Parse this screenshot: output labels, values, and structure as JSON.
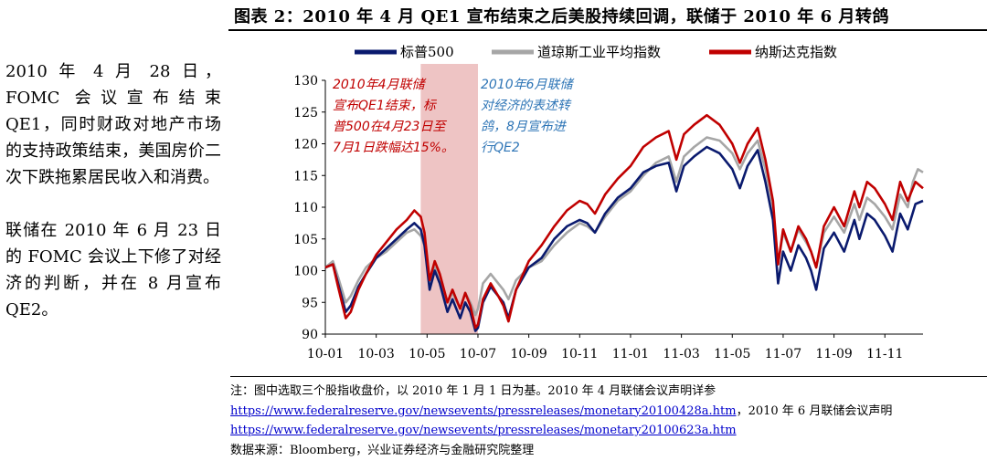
{
  "title": "图表 2：2010 年 4 月 QE1 宣布结束之后美股持续回调，联储于 2010 年 6 月转鸽",
  "sidebar": {
    "paragraph_1": "2010 年 4 月 28 日，FOMC 会议宣布结束 QE1，同时财政对地产市场的支持政策结束，美国房价二次下跌拖累居民收入和消费。",
    "paragraph_2": "联储在 2010 年 6 月 23 日的 FOMC 会议上下修了对经济的判断，并在 8 月宣布 QE2。"
  },
  "notes": {
    "note_line": "注：图中选取三个股指收盘价，以 2010 年 1 月 1 日为基。2010 年 4 月联储会议声明详参",
    "link_1": "https://www.federalreserve.gov/newsevents/pressreleases/monetary20100428a.htm",
    "link_1_suffix": "，2010 年 6 月联储会议声明",
    "link_2": "https://www.federalreserve.gov/newsevents/pressreleases/monetary20100623a.htm",
    "source": "数据来源：Bloomberg，兴业证券经济与金融研究院整理"
  },
  "colors": {
    "sp500": "#0a1a6e",
    "dow": "#a6a6a6",
    "nasdaq": "#c00000",
    "shade": "#eec4c4",
    "anno_red": "#c00000",
    "anno_blue": "#2e75b6"
  },
  "chart_data": {
    "type": "line",
    "title": "",
    "xlabel": "",
    "ylabel": "",
    "x_ticks": [
      "10-01",
      "10-03",
      "10-05",
      "10-07",
      "10-09",
      "10-11",
      "11-01",
      "11-03",
      "11-05",
      "11-07",
      "11-09",
      "11-11"
    ],
    "ylim": [
      90,
      130
    ],
    "yticks": [
      90,
      95,
      100,
      105,
      110,
      115,
      120,
      125,
      130
    ],
    "grid": false,
    "legend_position": "top",
    "x_unit": "months since 2010-01",
    "shaded_region": {
      "from": 3.75,
      "to": 6.0
    },
    "annotations": [
      {
        "text": "2010年4月联储宣布QE1结束，标普500在4月23日至7月1日跌幅达15%。",
        "color": "red"
      },
      {
        "text": "2010年6月联储对经济的表述转鸽，8月宣布进行QE2",
        "color": "blue"
      }
    ],
    "series": [
      {
        "name": "标普500",
        "color": "sp500",
        "points": [
          [
            0,
            100.5
          ],
          [
            0.3,
            101
          ],
          [
            0.5,
            98
          ],
          [
            0.8,
            93.5
          ],
          [
            1.0,
            94.5
          ],
          [
            1.3,
            97.5
          ],
          [
            1.6,
            99.5
          ],
          [
            2.0,
            102
          ],
          [
            2.4,
            103.5
          ],
          [
            2.8,
            105
          ],
          [
            3.2,
            106.5
          ],
          [
            3.5,
            107.5
          ],
          [
            3.75,
            106.5
          ],
          [
            3.9,
            104
          ],
          [
            4.1,
            97
          ],
          [
            4.3,
            100
          ],
          [
            4.5,
            98
          ],
          [
            4.8,
            93.5
          ],
          [
            5.0,
            95.5
          ],
          [
            5.3,
            92.5
          ],
          [
            5.5,
            95
          ],
          [
            5.7,
            93.5
          ],
          [
            5.9,
            90.5
          ],
          [
            6.0,
            91
          ],
          [
            6.2,
            95
          ],
          [
            6.5,
            97.5
          ],
          [
            6.8,
            96
          ],
          [
            7.0,
            95
          ],
          [
            7.2,
            92.5
          ],
          [
            7.5,
            97
          ],
          [
            8.0,
            100.5
          ],
          [
            8.5,
            102
          ],
          [
            9.0,
            105
          ],
          [
            9.5,
            107
          ],
          [
            10.0,
            108
          ],
          [
            10.3,
            107.5
          ],
          [
            10.6,
            106
          ],
          [
            11.0,
            109
          ],
          [
            11.5,
            111.5
          ],
          [
            12.0,
            113
          ],
          [
            12.5,
            115.5
          ],
          [
            13.0,
            116.5
          ],
          [
            13.5,
            117
          ],
          [
            13.8,
            112.5
          ],
          [
            14.1,
            116.5
          ],
          [
            14.5,
            118
          ],
          [
            15.0,
            119.5
          ],
          [
            15.5,
            118.5
          ],
          [
            16.0,
            116
          ],
          [
            16.3,
            113
          ],
          [
            16.6,
            116.5
          ],
          [
            17.0,
            119
          ],
          [
            17.3,
            114
          ],
          [
            17.6,
            108
          ],
          [
            17.8,
            98
          ],
          [
            18.0,
            103
          ],
          [
            18.3,
            100
          ],
          [
            18.6,
            104
          ],
          [
            18.9,
            102
          ],
          [
            19.1,
            100
          ],
          [
            19.3,
            97
          ],
          [
            19.6,
            103.5
          ],
          [
            20.0,
            106
          ],
          [
            20.4,
            103
          ],
          [
            20.8,
            108
          ],
          [
            21.0,
            105
          ],
          [
            21.3,
            109
          ],
          [
            21.6,
            108
          ],
          [
            22.0,
            105.5
          ],
          [
            22.3,
            103
          ],
          [
            22.6,
            109
          ],
          [
            22.9,
            106.5
          ],
          [
            23.2,
            110.5
          ],
          [
            23.5,
            111
          ]
        ]
      },
      {
        "name": "道琼斯工业平均指数",
        "color": "dow",
        "points": [
          [
            0,
            100.5
          ],
          [
            0.3,
            101.5
          ],
          [
            0.5,
            99
          ],
          [
            0.8,
            95
          ],
          [
            1.0,
            96
          ],
          [
            1.3,
            98.5
          ],
          [
            1.6,
            100.5
          ],
          [
            2.0,
            102
          ],
          [
            2.4,
            103
          ],
          [
            2.8,
            104.5
          ],
          [
            3.2,
            106
          ],
          [
            3.5,
            106.5
          ],
          [
            3.75,
            105.5
          ],
          [
            3.9,
            104
          ],
          [
            4.1,
            98
          ],
          [
            4.3,
            100.5
          ],
          [
            4.5,
            99
          ],
          [
            4.8,
            95
          ],
          [
            5.0,
            96.5
          ],
          [
            5.3,
            94
          ],
          [
            5.5,
            96.5
          ],
          [
            5.7,
            95
          ],
          [
            5.9,
            93
          ],
          [
            6.0,
            94
          ],
          [
            6.2,
            98
          ],
          [
            6.5,
            99.5
          ],
          [
            6.8,
            98
          ],
          [
            7.0,
            97
          ],
          [
            7.2,
            95.5
          ],
          [
            7.5,
            98.5
          ],
          [
            8.0,
            100.5
          ],
          [
            8.5,
            101.5
          ],
          [
            9.0,
            104
          ],
          [
            9.5,
            106
          ],
          [
            10.0,
            107.5
          ],
          [
            10.3,
            107
          ],
          [
            10.6,
            106
          ],
          [
            11.0,
            108.5
          ],
          [
            11.5,
            111
          ],
          [
            12.0,
            112.5
          ],
          [
            12.5,
            115
          ],
          [
            13.0,
            117
          ],
          [
            13.5,
            118
          ],
          [
            13.8,
            114
          ],
          [
            14.1,
            118
          ],
          [
            14.5,
            119.5
          ],
          [
            15.0,
            121
          ],
          [
            15.5,
            120.5
          ],
          [
            16.0,
            118.5
          ],
          [
            16.3,
            116
          ],
          [
            16.6,
            118.5
          ],
          [
            17.0,
            120.5
          ],
          [
            17.3,
            116
          ],
          [
            17.6,
            110
          ],
          [
            17.8,
            101
          ],
          [
            18.0,
            106
          ],
          [
            18.3,
            103
          ],
          [
            18.6,
            106.5
          ],
          [
            18.9,
            104.5
          ],
          [
            19.1,
            103
          ],
          [
            19.3,
            100.5
          ],
          [
            19.6,
            106
          ],
          [
            20.0,
            108.5
          ],
          [
            20.4,
            106
          ],
          [
            20.8,
            110.5
          ],
          [
            21.0,
            108
          ],
          [
            21.3,
            111.5
          ],
          [
            21.6,
            110.5
          ],
          [
            22.0,
            108.5
          ],
          [
            22.3,
            106.5
          ],
          [
            22.6,
            112
          ],
          [
            22.9,
            110
          ],
          [
            23.1,
            114
          ],
          [
            23.3,
            116
          ],
          [
            23.5,
            115.5
          ]
        ]
      },
      {
        "name": "纳斯达克指数",
        "color": "nasdaq",
        "points": [
          [
            0,
            100.5
          ],
          [
            0.3,
            101
          ],
          [
            0.5,
            97.5
          ],
          [
            0.8,
            92.5
          ],
          [
            1.0,
            93.5
          ],
          [
            1.3,
            97
          ],
          [
            1.6,
            99.5
          ],
          [
            2.0,
            102.5
          ],
          [
            2.4,
            104.5
          ],
          [
            2.8,
            106.5
          ],
          [
            3.2,
            108
          ],
          [
            3.5,
            109.5
          ],
          [
            3.75,
            108.5
          ],
          [
            3.9,
            106
          ],
          [
            4.1,
            98.5
          ],
          [
            4.3,
            101.5
          ],
          [
            4.5,
            99.5
          ],
          [
            4.8,
            95
          ],
          [
            5.0,
            97
          ],
          [
            5.3,
            94
          ],
          [
            5.5,
            96.5
          ],
          [
            5.7,
            94.5
          ],
          [
            5.9,
            91
          ],
          [
            6.0,
            91.5
          ],
          [
            6.2,
            95.5
          ],
          [
            6.5,
            98
          ],
          [
            6.8,
            96
          ],
          [
            7.0,
            94.5
          ],
          [
            7.2,
            92
          ],
          [
            7.5,
            97
          ],
          [
            8.0,
            101.5
          ],
          [
            8.5,
            104
          ],
          [
            9.0,
            107
          ],
          [
            9.5,
            109.5
          ],
          [
            10.0,
            111
          ],
          [
            10.3,
            110.5
          ],
          [
            10.6,
            109
          ],
          [
            11.0,
            112
          ],
          [
            11.5,
            114.5
          ],
          [
            12.0,
            116.5
          ],
          [
            12.5,
            119.5
          ],
          [
            13.0,
            121
          ],
          [
            13.5,
            122
          ],
          [
            13.8,
            117.5
          ],
          [
            14.1,
            121.5
          ],
          [
            14.5,
            123
          ],
          [
            15.0,
            124.5
          ],
          [
            15.5,
            123
          ],
          [
            16.0,
            120
          ],
          [
            16.3,
            117
          ],
          [
            16.6,
            120
          ],
          [
            17.0,
            122.5
          ],
          [
            17.3,
            117.5
          ],
          [
            17.6,
            111
          ],
          [
            17.8,
            101
          ],
          [
            18.0,
            106.5
          ],
          [
            18.3,
            103
          ],
          [
            18.6,
            107
          ],
          [
            18.9,
            105
          ],
          [
            19.1,
            103
          ],
          [
            19.3,
            100.5
          ],
          [
            19.6,
            107
          ],
          [
            20.0,
            110
          ],
          [
            20.4,
            107
          ],
          [
            20.8,
            112.5
          ],
          [
            21.0,
            110
          ],
          [
            21.3,
            114
          ],
          [
            21.6,
            113
          ],
          [
            22.0,
            110.5
          ],
          [
            22.3,
            108
          ],
          [
            22.6,
            114
          ],
          [
            22.9,
            111
          ],
          [
            23.2,
            114
          ],
          [
            23.5,
            113
          ]
        ]
      }
    ]
  }
}
